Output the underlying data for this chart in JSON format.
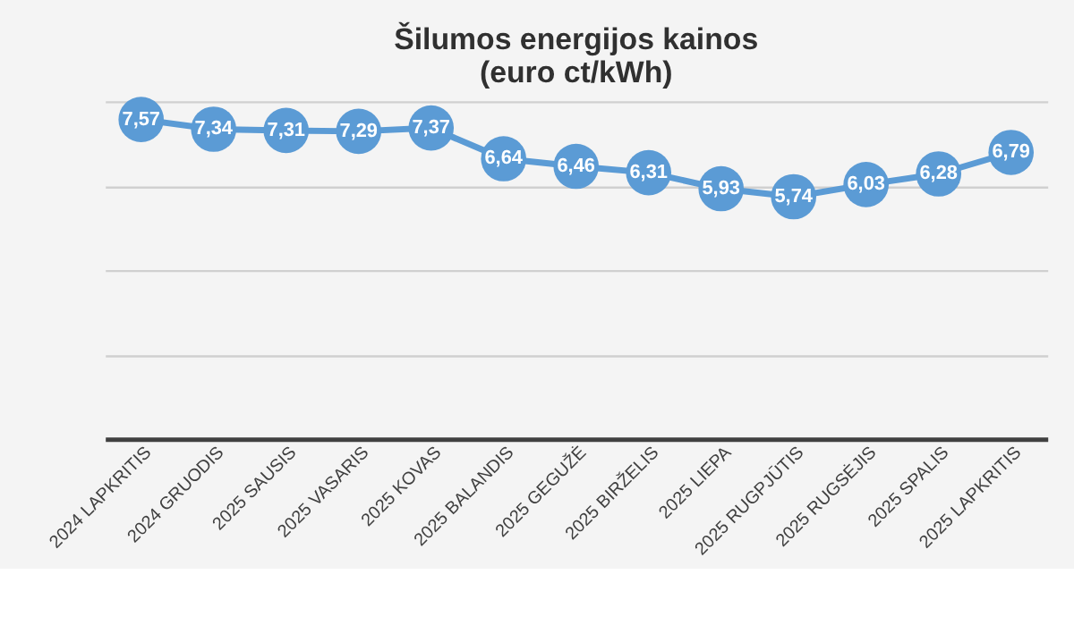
{
  "chart_data": {
    "type": "line",
    "title": [
      "Šilumos energijos kainos",
      "(euro ct/kWh)"
    ],
    "categories": [
      "2024 LAPKRITIS",
      "2024 GRUODIS",
      "2025 SAUSIS",
      "2025 VASARIS",
      "2025 KOVAS",
      "2025 BALANDIS",
      "2025 GEGUŽĖ",
      "2025 BIRŽELIS",
      "2025 LIEPA",
      "2025 RUGPJŪTIS",
      "2025 RUGSĖJIS",
      "2025 SPALIS",
      "2025 LAPKRITIS"
    ],
    "series": [
      {
        "color": "#5b9bd5",
        "values": [
          7.57,
          7.34,
          7.31,
          7.29,
          7.37,
          6.64,
          6.46,
          6.31,
          5.93,
          5.74,
          6.03,
          6.28,
          6.79
        ],
        "value_labels": [
          "7,57",
          "7,34",
          "7,31",
          "7,29",
          "7,37",
          "6,64",
          "6,46",
          "6,31",
          "5,93",
          "5,74",
          "6,03",
          "6,28",
          "6,79"
        ]
      }
    ],
    "ylim": [
      0,
      8
    ],
    "tick_labels": "x",
    "grid": "y",
    "marker": "circle",
    "line_style": "solid"
  }
}
